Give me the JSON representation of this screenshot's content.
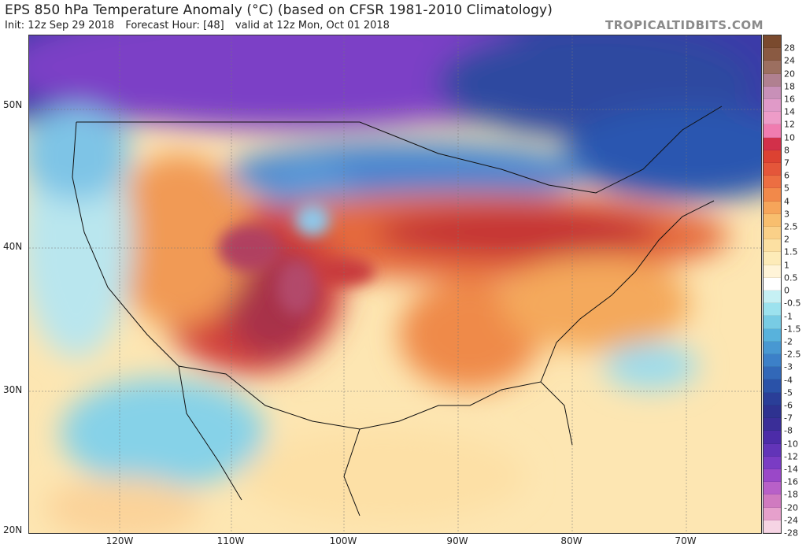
{
  "header": {
    "title": "EPS 850 hPa Temperature Anomaly (°C) (based on CFSR 1981-2010 Climatology)",
    "init": "Init: 12z Sep 29 2018",
    "forecast_hour": "Forecast Hour: [48]",
    "valid": "valid at 12z Mon, Oct 01 2018",
    "brand": "TROPICALTIDBITS.COM"
  },
  "map": {
    "lat_labels": [
      "50N",
      "40N",
      "30N",
      "20N"
    ],
    "lon_labels": [
      "120W",
      "110W",
      "100W",
      "90W",
      "80W",
      "70W"
    ]
  },
  "colorbar": {
    "labels": [
      "28",
      "24",
      "20",
      "18",
      "16",
      "14",
      "12",
      "10",
      "8",
      "7",
      "6",
      "5",
      "4",
      "3",
      "2.5",
      "2",
      "1.5",
      "1",
      "0.5",
      "0",
      "-0.5",
      "-1",
      "-1.5",
      "-2",
      "-2.5",
      "-3",
      "-4",
      "-5",
      "-6",
      "-7",
      "-8",
      "-10",
      "-12",
      "-14",
      "-16",
      "-18",
      "-20",
      "-24",
      "-28"
    ],
    "colors": [
      "#7a4a2e",
      "#8a5a42",
      "#9c6f60",
      "#b08090",
      "#c890b8",
      "#e09ac8",
      "#ee9cc8",
      "#f07cb0",
      "#d2304a",
      "#dc4232",
      "#e4563a",
      "#ec6e42",
      "#f2894a",
      "#f6a55a",
      "#f8be6e",
      "#fad088",
      "#fce0a2",
      "#fdebb8",
      "#fff4d8",
      "#ffffff",
      "#c6f0f4",
      "#9ce2ee",
      "#78cce4",
      "#58b2dc",
      "#4898d2",
      "#3c80c8",
      "#3268b8",
      "#2a52a8",
      "#2a3e98",
      "#2e3290",
      "#3a2e98",
      "#4c2ca8",
      "#6234b8",
      "#7a3cc4",
      "#9a48c8",
      "#b860c8",
      "#d07ac0",
      "#e6a0cc",
      "#f6d4e4"
    ]
  }
}
